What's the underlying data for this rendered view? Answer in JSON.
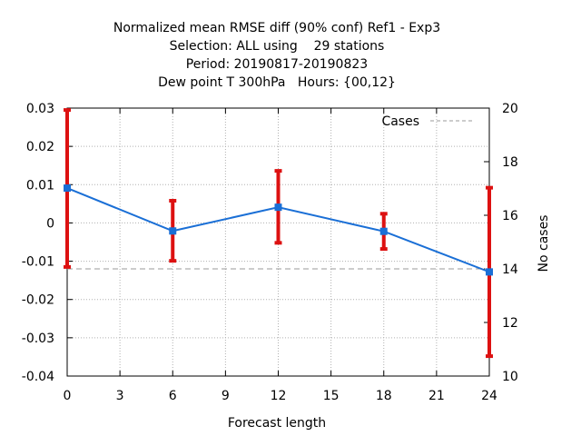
{
  "chart_data": {
    "type": "line",
    "title_lines": [
      "Normalized mean RMSE diff (90% conf) Ref1 - Exp3",
      "Selection: ALL using    29 stations",
      "Period: 20190817-20190823",
      "Dew point T 300hPa   Hours: {00,12}"
    ],
    "xlabel": "Forecast length",
    "ylabel": "",
    "y2label": "No cases",
    "xlim": [
      0,
      24
    ],
    "ylim": [
      -0.04,
      0.03
    ],
    "y2lim": [
      10,
      20
    ],
    "xticks": [
      0,
      3,
      6,
      9,
      12,
      15,
      18,
      21,
      24
    ],
    "yticks": [
      -0.04,
      -0.03,
      -0.02,
      -0.01,
      0,
      0.01,
      0.02,
      0.03
    ],
    "yticklabels": [
      "-0.04",
      "-0.03",
      "-0.02",
      "-0.01",
      "0",
      "0.01",
      "0.02",
      "0.03"
    ],
    "y2ticks": [
      10,
      12,
      14,
      16,
      18,
      20
    ],
    "grid": true,
    "legend": {
      "placement": "top-right",
      "entries": [
        "Cases"
      ]
    },
    "series": [
      {
        "x": [
          0,
          6,
          12,
          18,
          24
        ],
        "y": [
          0.0091,
          -0.0021,
          0.0041,
          -0.0022,
          -0.0128
        ],
        "err_low": [
          -0.0115,
          -0.0099,
          -0.0052,
          -0.0068,
          -0.0348
        ],
        "err_high": [
          0.0295,
          0.0058,
          0.0136,
          0.0024,
          0.0092
        ],
        "color": "#1a6fd6",
        "err_color": "#dd1111"
      },
      {
        "name": "Cases",
        "axis": "y2",
        "x": [
          0,
          6,
          12,
          18,
          24
        ],
        "y": [
          14,
          14,
          14,
          14,
          14
        ],
        "color": "#999999",
        "dashed": true
      }
    ]
  }
}
